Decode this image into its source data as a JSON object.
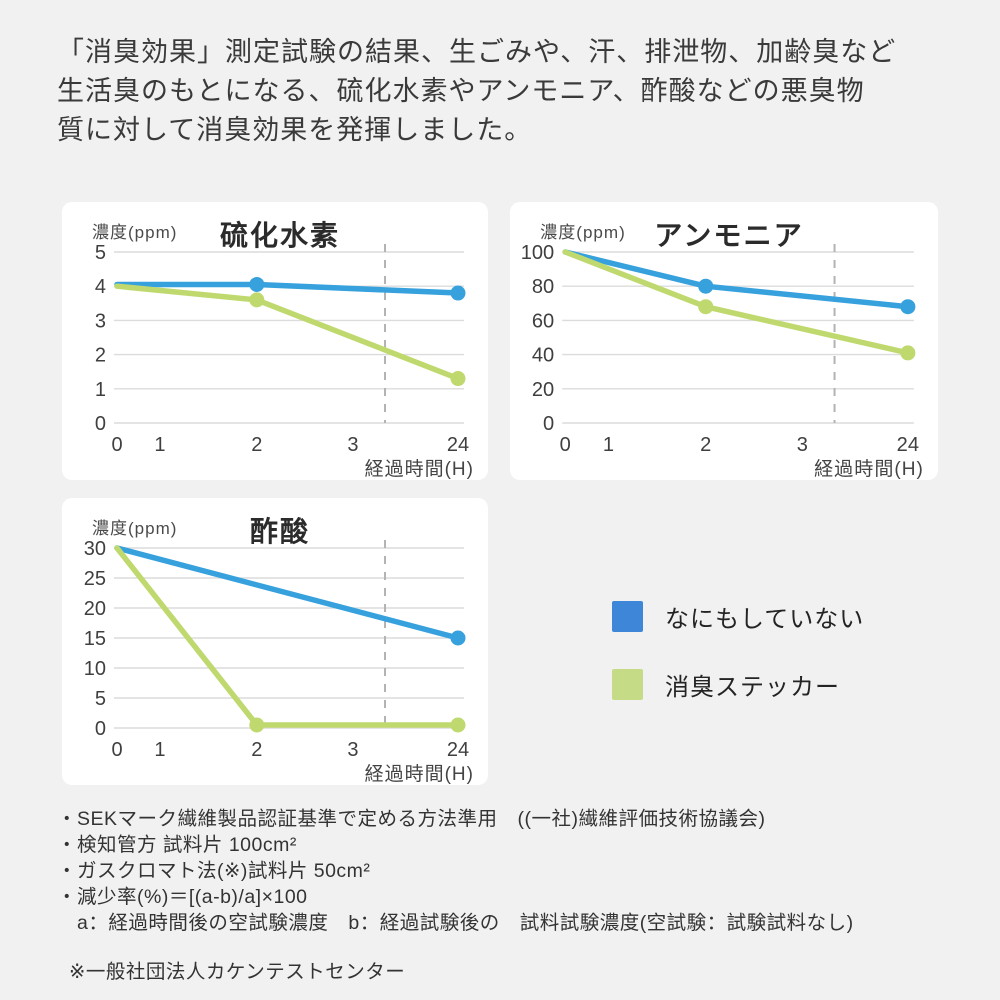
{
  "page": {
    "background": "#f1f1f2",
    "panel_color": "#ffffff",
    "grid_color": "#dcdcdc",
    "dashed_break_color": "#b3b3b3",
    "tick_text_color": "#3f3f3f",
    "title_text_color": "#2b2b2b"
  },
  "headline": {
    "lines": [
      "「消臭効果」測定試験の結果、生ごみや、汗、排泄物、加齢臭など",
      "生活臭のもとになる、硫化水素やアンモニア、酢酸などの悪臭物",
      "質に対して消臭効果を発揮しました。"
    ]
  },
  "legend": {
    "items": [
      {
        "label": "なにもしていない",
        "color": "#3e86d8"
      },
      {
        "label": "消臭ステッカー",
        "color": "#c6db85"
      }
    ]
  },
  "chart_data": [
    {
      "type": "line",
      "title": "硫化水素",
      "ylabel": "濃度(ppm)",
      "xlabel": "経過時間(H)",
      "x_categories": [
        "0",
        "1",
        "2",
        "3",
        "24"
      ],
      "x_positions": [
        0,
        0.126,
        0.41,
        0.692,
        1
      ],
      "y_ticks": [
        0,
        1,
        2,
        3,
        4,
        5
      ],
      "ylim": [
        0,
        5
      ],
      "axis_break_x": 0.786,
      "grid": true,
      "series": [
        {
          "name": "なにもしていない",
          "color": "#37a1dd",
          "points": [
            [
              0,
              4.05
            ],
            [
              2,
              4.05
            ],
            [
              24,
              3.8
            ]
          ],
          "markers": [
            2,
            24
          ]
        },
        {
          "name": "消臭ステッカー",
          "color": "#bfd96f",
          "points": [
            [
              0,
              4.0
            ],
            [
              2,
              3.6
            ],
            [
              24,
              1.3
            ]
          ],
          "markers": [
            2,
            24
          ]
        }
      ]
    },
    {
      "type": "line",
      "title": "アンモニア",
      "ylabel": "濃度(ppm)",
      "xlabel": "経過時間(H)",
      "x_categories": [
        "0",
        "1",
        "2",
        "3",
        "24"
      ],
      "x_positions": [
        0,
        0.126,
        0.41,
        0.692,
        1
      ],
      "y_ticks": [
        0,
        20,
        40,
        60,
        80,
        100
      ],
      "ylim": [
        0,
        100
      ],
      "axis_break_x": 0.786,
      "grid": true,
      "series": [
        {
          "name": "なにもしていない",
          "color": "#37a1dd",
          "points": [
            [
              0,
              100
            ],
            [
              2,
              80
            ],
            [
              24,
              68
            ]
          ],
          "markers": [
            2,
            24
          ]
        },
        {
          "name": "消臭ステッカー",
          "color": "#bfd96f",
          "points": [
            [
              0,
              100
            ],
            [
              2,
              68
            ],
            [
              24,
              41
            ]
          ],
          "markers": [
            2,
            24
          ]
        }
      ]
    },
    {
      "type": "line",
      "title": "酢酸",
      "ylabel": "濃度(ppm)",
      "xlabel": "経過時間(H)",
      "x_categories": [
        "0",
        "1",
        "2",
        "3",
        "24"
      ],
      "x_positions": [
        0,
        0.126,
        0.41,
        0.692,
        1
      ],
      "y_ticks": [
        0,
        5,
        10,
        15,
        20,
        25,
        30
      ],
      "ylim": [
        0,
        30
      ],
      "axis_break_x": 0.786,
      "grid": true,
      "series": [
        {
          "name": "なにもしていない",
          "color": "#37a1dd",
          "points": [
            [
              0,
              30
            ],
            [
              24,
              15
            ]
          ],
          "markers": [
            24
          ]
        },
        {
          "name": "消臭ステッカー",
          "color": "#bfd96f",
          "points": [
            [
              0,
              30
            ],
            [
              2,
              0.5
            ],
            [
              24,
              0.5
            ]
          ],
          "markers": [
            2,
            24
          ]
        }
      ]
    }
  ],
  "footer": {
    "notes": [
      "・SEKマーク繊維製品認証基準で定める方法準用　((一社)繊維評価技術協議会)",
      "・検知管方 試料片 100cm²",
      "・ガスクロマト法(※)試料片 50cm²",
      "・減少率(%)＝[(a-b)/a]×100",
      "　a：経過時間後の空試験濃度　b：経過試験後の　試料試験濃度(空試験：試験試料なし)"
    ],
    "source_note": "※一般社団法人カケンテストセンター"
  }
}
